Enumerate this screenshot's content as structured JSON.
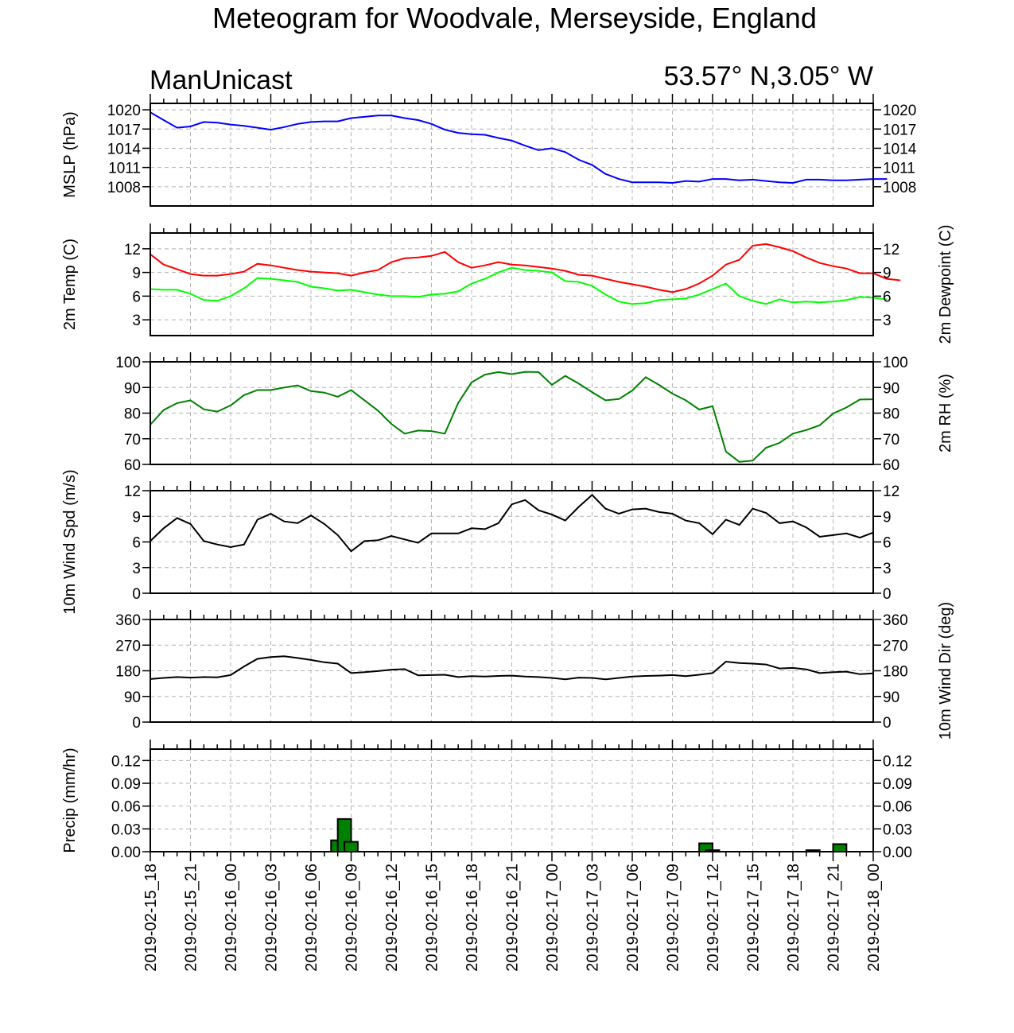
{
  "header": {
    "title": "Meteogram for Woodvale, Merseyside, England",
    "left_label": "ManUnicast",
    "right_label": "53.57° N,3.05° W"
  },
  "chart_data": [
    {
      "type": "line",
      "ylabel": "MSLP (hPa)",
      "ylim": [
        1005,
        1021
      ],
      "yticks": [
        1008,
        1011,
        1014,
        1017,
        1020
      ],
      "grid": true,
      "right_axis_labels": true,
      "series": [
        {
          "color": "#0000ff",
          "values": [
            1019.6,
            1018.4,
            1017.2,
            1017.4,
            1018.1,
            1018.0,
            1017.7,
            1017.5,
            1017.2,
            1016.9,
            1017.3,
            1017.8,
            1018.1,
            1018.2,
            1018.2,
            1018.7,
            1018.9,
            1019.1,
            1019.1,
            1018.7,
            1018.4,
            1017.8,
            1016.9,
            1016.4,
            1016.2,
            1016.1,
            1015.6,
            1015.2,
            1014.4,
            1013.7,
            1014.0,
            1013.4,
            1012.2,
            1011.4,
            1010.0,
            1009.2,
            1008.7,
            1008.7,
            1008.7,
            1008.6,
            1008.9,
            1008.8,
            1009.2,
            1009.2,
            1009.0,
            1009.1,
            1008.9,
            1008.7,
            1008.6,
            1009.1,
            1009.1,
            1009.0,
            1009.0,
            1009.1,
            1009.2,
            1009.2
          ]
        }
      ]
    },
    {
      "type": "line",
      "ylabel": "2m Temp (C)",
      "ylabel_right": "2m Dewpoint (C)",
      "ylim": [
        1,
        14
      ],
      "yticks": [
        3,
        6,
        9,
        12
      ],
      "grid": true,
      "right_axis_labels": true,
      "series": [
        {
          "color": "#ff0000",
          "values": [
            11.3,
            10.0,
            9.4,
            8.8,
            8.6,
            8.6,
            8.8,
            9.1,
            10.1,
            9.9,
            9.6,
            9.3,
            9.1,
            9.0,
            8.9,
            8.6,
            9.0,
            9.3,
            10.3,
            10.8,
            10.9,
            11.1,
            11.6,
            10.3,
            9.6,
            9.9,
            10.3,
            10.0,
            9.9,
            9.7,
            9.5,
            9.2,
            8.7,
            8.6,
            8.2,
            7.8,
            7.5,
            7.2,
            6.8,
            6.5,
            6.9,
            7.6,
            8.6,
            10.0,
            10.6,
            12.4,
            12.6,
            12.2,
            11.7,
            10.9,
            10.2,
            9.8,
            9.5,
            8.9,
            8.9,
            8.2,
            8.0
          ]
        },
        {
          "color": "#00ff00",
          "values": [
            6.9,
            6.8,
            6.8,
            6.3,
            5.5,
            5.4,
            6.0,
            7.0,
            8.3,
            8.2,
            8.0,
            7.8,
            7.2,
            7.0,
            6.7,
            6.8,
            6.5,
            6.2,
            6.0,
            6.0,
            5.9,
            6.2,
            6.3,
            6.6,
            7.6,
            8.2,
            9.0,
            9.6,
            9.3,
            9.2,
            9.0,
            7.9,
            7.8,
            7.3,
            6.2,
            5.3,
            5.0,
            5.1,
            5.5,
            5.6,
            5.7,
            6.2,
            6.9,
            7.6,
            6.0,
            5.4,
            5.0,
            5.6,
            5.2,
            5.3,
            5.2,
            5.3,
            5.5,
            5.9,
            5.8,
            5.6
          ]
        }
      ]
    },
    {
      "type": "line",
      "ylabel": "",
      "ylabel_right": "2m RH (%)",
      "ylim": [
        60,
        100
      ],
      "yticks": [
        60,
        70,
        80,
        90,
        100
      ],
      "grid": true,
      "right_axis_labels": true,
      "series": [
        {
          "color": "#008000",
          "values": [
            75.5,
            81.2,
            83.9,
            85.0,
            81.5,
            80.6,
            83.0,
            87.0,
            89.0,
            89.0,
            90.0,
            90.8,
            88.6,
            88.0,
            86.4,
            89.0,
            85.0,
            81.0,
            75.8,
            72.0,
            73.2,
            73.0,
            72.0,
            84.0,
            92.0,
            95.0,
            96.0,
            95.2,
            96.1,
            96.0,
            91.0,
            94.5,
            91.5,
            88.2,
            85.0,
            85.5,
            88.8,
            94.0,
            91.0,
            87.6,
            85.0,
            81.4,
            82.7,
            65.0,
            61.0,
            61.5,
            66.5,
            68.4,
            72.0,
            73.4,
            75.3,
            79.8,
            82.2,
            85.3,
            85.4
          ]
        }
      ]
    },
    {
      "type": "line",
      "ylabel": "10m Wind Spd (m/s)",
      "ylim": [
        0,
        12
      ],
      "yticks": [
        0,
        3,
        6,
        9,
        12
      ],
      "grid": true,
      "right_axis_labels": true,
      "series": [
        {
          "color": "#000000",
          "values": [
            6.1,
            7.6,
            8.8,
            8.1,
            6.1,
            5.7,
            5.4,
            5.7,
            8.6,
            9.3,
            8.4,
            8.2,
            9.1,
            8.1,
            6.8,
            4.9,
            6.1,
            6.2,
            6.7,
            6.3,
            5.9,
            7.0,
            7.0,
            7.0,
            7.6,
            7.5,
            8.2,
            10.4,
            10.9,
            9.7,
            9.2,
            8.5,
            10.1,
            11.5,
            9.9,
            9.3,
            9.8,
            9.9,
            9.5,
            9.3,
            8.5,
            8.2,
            6.9,
            8.6,
            8.0,
            9.9,
            9.4,
            8.2,
            8.4,
            7.7,
            6.6,
            6.8,
            7.0,
            6.5,
            7.1
          ]
        }
      ]
    },
    {
      "type": "line",
      "ylabel": "",
      "ylabel_right": "10m Wind Dir (deg)",
      "ylim": [
        0,
        360
      ],
      "yticks": [
        0,
        90,
        180,
        270,
        360
      ],
      "grid": true,
      "right_axis_labels": true,
      "series": [
        {
          "color": "#000000",
          "values": [
            151,
            155,
            158,
            156,
            158,
            157,
            165,
            195,
            222,
            228,
            231,
            225,
            218,
            210,
            205,
            172,
            175,
            179,
            184,
            186,
            164,
            165,
            166,
            158,
            161,
            160,
            162,
            163,
            160,
            158,
            155,
            150,
            156,
            155,
            150,
            155,
            160,
            162,
            163,
            165,
            161,
            166,
            172,
            212,
            207,
            205,
            202,
            188,
            190,
            185,
            172,
            175,
            177,
            168,
            171
          ]
        }
      ]
    },
    {
      "type": "bar",
      "ylabel": "Precip (mm/hr)",
      "ylim": [
        0,
        0.135
      ],
      "yticks": [
        0.0,
        0.03,
        0.06,
        0.09,
        0.12
      ],
      "ytick_labels": [
        "0.00",
        "0.03",
        "0.06",
        "0.09",
        "0.12"
      ],
      "grid": true,
      "right_axis_labels": true,
      "bar_color": "#008000",
      "bars": [
        {
          "x": 14.0,
          "value": 0.015
        },
        {
          "x": 14.5,
          "value": 0.043
        },
        {
          "x": 15.0,
          "value": 0.013
        },
        {
          "x": 41.5,
          "value": 0.011
        },
        {
          "x": 42.0,
          "value": 0.002
        },
        {
          "x": 49.5,
          "value": 0.002
        },
        {
          "x": 51.5,
          "value": 0.01
        }
      ]
    }
  ],
  "x_axis": {
    "tick_labels": [
      "2019-02-15_18",
      "2019-02-15_21",
      "2019-02-16_00",
      "2019-02-16_03",
      "2019-02-16_06",
      "2019-02-16_09",
      "2019-02-16_12",
      "2019-02-16_15",
      "2019-02-16_18",
      "2019-02-16_21",
      "2019-02-17_00",
      "2019-02-17_03",
      "2019-02-17_06",
      "2019-02-17_09",
      "2019-02-17_12",
      "2019-02-17_15",
      "2019-02-17_18",
      "2019-02-17_21",
      "2019-02-18_00"
    ]
  }
}
